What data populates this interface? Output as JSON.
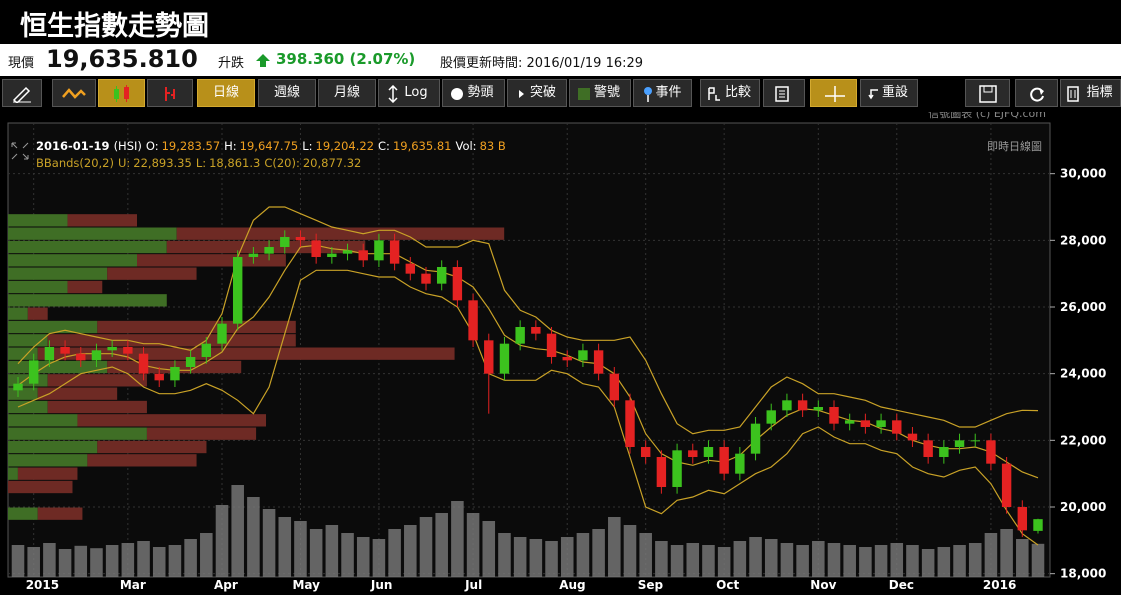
{
  "header": {
    "title": "恒生指數走勢圖",
    "price_label": "現價",
    "price": "19,635.810",
    "change_label": "升跌",
    "change": "398.360 (2.07%)",
    "update": "股價更新時間: 2016/01/19 16:29"
  },
  "toolbar": {
    "buttons": [
      "日線",
      "週線",
      "月線",
      "Log",
      "勢頭",
      "突破",
      "警號",
      "事件",
      "比較",
      "重設",
      "指標"
    ]
  },
  "chart_data": {
    "type": "candlestick",
    "watermark": "信號圖表 (c) EJFQ.com",
    "mode_label": "即時日線圖",
    "info": {
      "date": "2016-01-19",
      "symbol": "(HSI)",
      "labels": [
        "O:",
        "H:",
        "L:",
        "C:",
        "Vol:"
      ],
      "values": [
        "19,283.57",
        "19,647.75",
        "19,204.22",
        "19,635.81",
        "83 B"
      ]
    },
    "categories": [
      null,
      "2015",
      null,
      null,
      null,
      null,
      null,
      "Mar",
      null,
      null,
      null,
      null,
      null,
      "Apr",
      null,
      null,
      null,
      null,
      "May",
      null,
      null,
      null,
      null,
      "Jun",
      null,
      null,
      null,
      null,
      null,
      "Jul",
      null,
      null,
      null,
      null,
      null,
      "Aug",
      null,
      null,
      null,
      null,
      "Sep",
      null,
      null,
      null,
      null,
      "Oct",
      null,
      null,
      null,
      null,
      null,
      "Nov",
      null,
      null,
      null,
      null,
      "Dec",
      null,
      null,
      null,
      null,
      null,
      "2016",
      null,
      null,
      null
    ],
    "open": [
      23500,
      23700,
      24400,
      24800,
      24600,
      24400,
      24700,
      24800,
      24600,
      24000,
      23800,
      24200,
      24500,
      24900,
      25500,
      27500,
      27600,
      27800,
      28100,
      28000,
      27500,
      27600,
      27700,
      27400,
      28000,
      27300,
      27000,
      26700,
      27200,
      26200,
      25000,
      24000,
      24900,
      25400,
      25200,
      24500,
      24400,
      24700,
      24000,
      23200,
      21800,
      21500,
      20600,
      21700,
      21500,
      21800,
      21000,
      21600,
      22500,
      22900,
      23200,
      22900,
      23000,
      22500,
      22600,
      22400,
      22600,
      22200,
      22000,
      21500,
      21800,
      22000,
      22000,
      21300,
      20000,
      19283.57
    ],
    "high": [
      23900,
      24600,
      25000,
      25000,
      24800,
      24900,
      25000,
      25000,
      24800,
      24200,
      24400,
      24700,
      25100,
      25700,
      27700,
      27800,
      28000,
      28300,
      28300,
      28200,
      27800,
      27900,
      27900,
      28200,
      28200,
      27500,
      27200,
      27400,
      27400,
      26400,
      25200,
      25100,
      25600,
      25600,
      25400,
      24700,
      24900,
      24900,
      24200,
      23400,
      22000,
      21700,
      21900,
      21900,
      22000,
      22000,
      21800,
      22700,
      23100,
      23400,
      23400,
      23200,
      23200,
      22800,
      22800,
      22800,
      22800,
      22400,
      22200,
      22000,
      22200,
      22200,
      22200,
      21500,
      20200,
      19647.75
    ],
    "low": [
      23300,
      23500,
      24200,
      24400,
      24200,
      24200,
      24500,
      24400,
      23800,
      23600,
      23600,
      24000,
      24300,
      24700,
      25300,
      27300,
      27400,
      27600,
      27800,
      27300,
      27300,
      27400,
      27200,
      27200,
      27100,
      26800,
      26500,
      26500,
      26000,
      24800,
      22800,
      23800,
      24700,
      25000,
      24300,
      24200,
      24200,
      23800,
      23000,
      21600,
      21300,
      20400,
      20400,
      21300,
      21300,
      20800,
      20800,
      21400,
      22300,
      22700,
      22700,
      22700,
      22300,
      22300,
      22200,
      22200,
      22000,
      21800,
      21300,
      21300,
      21600,
      21800,
      21100,
      19800,
      19100,
      19204.22
    ],
    "close": [
      23700,
      24400,
      24800,
      24600,
      24400,
      24700,
      24800,
      24600,
      24000,
      23800,
      24200,
      24500,
      24900,
      25500,
      27500,
      27600,
      27800,
      28100,
      28000,
      27500,
      27600,
      27700,
      27400,
      28000,
      27300,
      27000,
      26700,
      27200,
      26200,
      25000,
      24000,
      24900,
      25400,
      25200,
      24500,
      24400,
      24700,
      24000,
      23200,
      21800,
      21500,
      20600,
      21700,
      21500,
      21800,
      21000,
      21600,
      22500,
      22900,
      23200,
      22900,
      23000,
      22500,
      22600,
      22400,
      22600,
      22200,
      22000,
      21500,
      21800,
      22000,
      22000,
      21300,
      20000,
      19300,
      19635.81
    ],
    "volume": [
      80,
      75,
      85,
      70,
      78,
      72,
      80,
      85,
      90,
      75,
      80,
      95,
      110,
      180,
      230,
      200,
      170,
      150,
      140,
      120,
      130,
      110,
      100,
      95,
      120,
      130,
      150,
      160,
      190,
      160,
      140,
      110,
      100,
      95,
      90,
      100,
      110,
      120,
      150,
      130,
      110,
      90,
      80,
      85,
      80,
      75,
      90,
      100,
      95,
      85,
      80,
      90,
      85,
      80,
      75,
      80,
      85,
      80,
      70,
      75,
      80,
      85,
      110,
      120,
      95,
      83
    ],
    "vol_lim": [
      0,
      1100
    ],
    "up_color": "#3cc21e",
    "down_color": "#e42222",
    "volume_color": "#7a7a7a",
    "bbands": {
      "name": "BBands(20,2)",
      "labels": [
        "U:",
        "L:",
        "C(20):"
      ],
      "values": [
        "22,893.35",
        "18,861.3",
        "20,877.32"
      ],
      "color": "#c9a227",
      "upper": [
        24300,
        24800,
        25200,
        25300,
        25200,
        25100,
        25000,
        25000,
        24900,
        24900,
        24800,
        24700,
        25000,
        25800,
        27500,
        28600,
        29000,
        29000,
        28800,
        28600,
        28400,
        28300,
        28200,
        28300,
        28300,
        28100,
        27800,
        27800,
        27800,
        28000,
        27900,
        26500,
        25900,
        25700,
        25300,
        25100,
        25000,
        25000,
        25000,
        25100,
        24400,
        23400,
        22500,
        22200,
        22300,
        22300,
        22400,
        23000,
        23600,
        23900,
        23700,
        23400,
        23400,
        23300,
        23200,
        23000,
        22900,
        22800,
        22700,
        22600,
        22400,
        22400,
        22600,
        22800,
        22900,
        22893.35
      ],
      "lower": [
        23000,
        23200,
        23400,
        23700,
        24000,
        24100,
        24200,
        24000,
        23600,
        23400,
        23400,
        23500,
        23700,
        23500,
        23200,
        22800,
        23600,
        25200,
        26800,
        27100,
        27100,
        27100,
        27000,
        26900,
        26900,
        26600,
        26400,
        26300,
        26000,
        25200,
        24000,
        23800,
        23800,
        23800,
        24100,
        24000,
        23700,
        23600,
        23000,
        21500,
        20000,
        19800,
        20200,
        20300,
        20500,
        20400,
        20700,
        21000,
        21200,
        21600,
        22200,
        22400,
        22100,
        21900,
        21900,
        21700,
        21600,
        21200,
        21000,
        20900,
        21100,
        21200,
        20700,
        19900,
        19200,
        18861.3
      ],
      "mid": [
        23650,
        24000,
        24300,
        24500,
        24600,
        24600,
        24600,
        24500,
        24250,
        24150,
        24100,
        24100,
        24350,
        24650,
        25350,
        25700,
        26300,
        27100,
        27800,
        27850,
        27750,
        27700,
        27600,
        27600,
        27600,
        27350,
        27100,
        27050,
        26900,
        26600,
        25950,
        25150,
        24850,
        24750,
        24700,
        24550,
        24350,
        24300,
        24000,
        23300,
        22200,
        21600,
        21350,
        21250,
        21400,
        21350,
        21550,
        22000,
        22400,
        22750,
        22950,
        22900,
        22750,
        22600,
        22550,
        22350,
        22250,
        22000,
        21850,
        21750,
        21750,
        21800,
        21650,
        21350,
        21050,
        20877.32
      ]
    },
    "profile": {
      "bins": [
        19600,
        20000,
        20400,
        20800,
        21200,
        21600,
        22000,
        22400,
        22800,
        23200,
        23600,
        24000,
        24400,
        24800,
        25200,
        25600,
        26000,
        26400,
        26800,
        27200,
        27600,
        28000,
        28400,
        28800
      ],
      "up": [
        30,
        0,
        0,
        10,
        80,
        90,
        140,
        70,
        40,
        30,
        40,
        100,
        30,
        40,
        90,
        20,
        160,
        60,
        100,
        130,
        160,
        170,
        60
      ],
      "down": [
        45,
        0,
        65,
        60,
        110,
        110,
        110,
        190,
        100,
        80,
        100,
        135,
        420,
        250,
        200,
        20,
        0,
        35,
        90,
        150,
        200,
        330,
        70
      ],
      "lim": [
        0,
        1050
      ],
      "up_color": "#3f6e25",
      "down_color": "#6e2a24"
    },
    "ylim": [
      17900,
      31100
    ],
    "yticks": [
      {
        "value": 18000,
        "label": "18,000"
      },
      {
        "value": 20000,
        "label": "20,000"
      },
      {
        "value": 22000,
        "label": "22,000"
      },
      {
        "value": 24000,
        "label": "24,000"
      },
      {
        "value": 26000,
        "label": "26,000"
      },
      {
        "value": 28000,
        "label": "28,000"
      },
      {
        "value": 30000,
        "label": "30,000"
      }
    ],
    "grid": true
  }
}
